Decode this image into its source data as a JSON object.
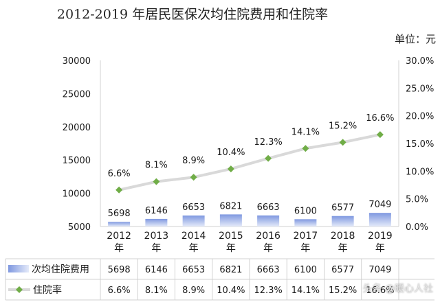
{
  "title": "2012-2019 年居民医保次均住院费用和住院率",
  "unit_label": "单位：元",
  "watermark": "头条 @暖心人社",
  "chart_data": {
    "type": "bar+line",
    "categories": [
      "2012\n年",
      "2013\n年",
      "2014\n年",
      "2015\n年",
      "2016\n年",
      "2017\n年",
      "2018\n年",
      "2019\n年"
    ],
    "series": [
      {
        "name": "次均住院费用",
        "type": "bar",
        "axis": "left",
        "values": [
          5698,
          6146,
          6653,
          6821,
          6663,
          6100,
          6577,
          7049
        ],
        "labels": [
          "5698",
          "6146",
          "6653",
          "6821",
          "6663",
          "6100",
          "6577",
          "7049"
        ],
        "table_labels": [
          "5698",
          "6146",
          "6653",
          "6821",
          "6663",
          "6100",
          "6577",
          "7049"
        ],
        "color": "#8fa6e3"
      },
      {
        "name": "住院率",
        "type": "line",
        "axis": "right",
        "values": [
          6.6,
          8.1,
          8.9,
          10.4,
          12.3,
          14.1,
          15.2,
          16.6
        ],
        "labels": [
          "6.6%",
          "8.1%",
          "8.9%",
          "10.4%",
          "12.3%",
          "14.1%",
          "15.2%",
          "16.6%"
        ],
        "table_labels": [
          "6.6%",
          "8.1%",
          "8.9%",
          "10.4%",
          "12.3%",
          "14.1%",
          "15.2%",
          "16.6%"
        ],
        "color": "#70ad47",
        "line_color": "#d9d9d9"
      }
    ],
    "y_left": {
      "min": 5000,
      "max": 30000,
      "ticks": [
        5000,
        10000,
        15000,
        20000,
        25000,
        30000
      ],
      "tick_labels": [
        "5000",
        "10000",
        "15000",
        "20000",
        "25000",
        "30000"
      ]
    },
    "y_right": {
      "min": 0,
      "max": 30,
      "ticks": [
        0,
        5,
        10,
        15,
        20,
        25,
        30
      ],
      "tick_labels": [
        "0.0%",
        "5.0%",
        "10.0%",
        "15.0%",
        "20.0%",
        "25.0%",
        "30.0%"
      ]
    },
    "grid": false,
    "data_table": true
  }
}
